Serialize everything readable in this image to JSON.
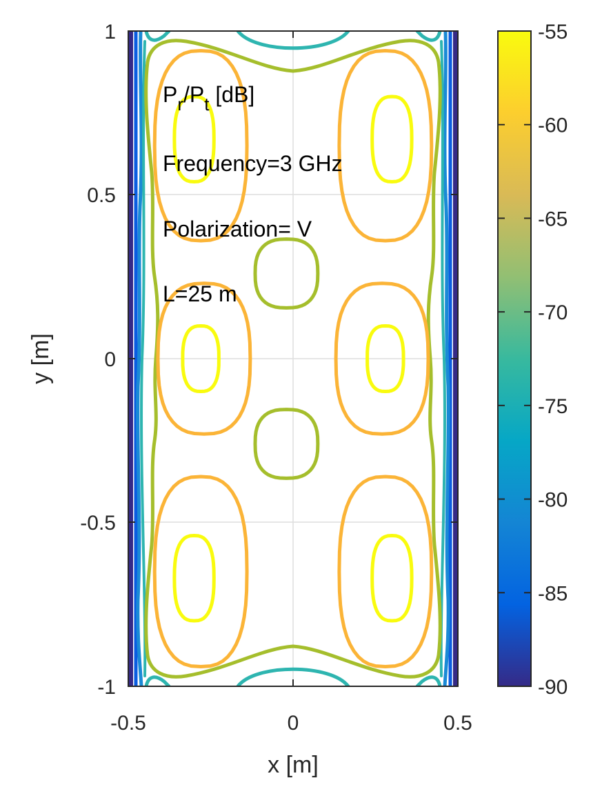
{
  "chart_data": {
    "type": "contour",
    "title": "",
    "xlabel": "x [m]",
    "ylabel": "y [m]",
    "xlim": [
      -0.5,
      0.5
    ],
    "ylim": [
      -1,
      1
    ],
    "xticks": [
      -0.5,
      0,
      0.5
    ],
    "xtick_labels": [
      "-0.5",
      "0",
      "0.5"
    ],
    "yticks": [
      -1,
      -0.5,
      0,
      0.5,
      1
    ],
    "ytick_labels": [
      "-1",
      "-0.5",
      "0",
      "0.5",
      "1"
    ],
    "grid": true,
    "colorbar": {
      "range": [
        -90,
        -55
      ],
      "ticks": [
        -90,
        -85,
        -80,
        -75,
        -70,
        -65,
        -60,
        -55
      ],
      "tick_labels": [
        "-90",
        "-85",
        "-80",
        "-75",
        "-70",
        "-65",
        "-60",
        "-55"
      ],
      "colormap": "parula"
    },
    "annotation": {
      "quantity_main1": "P",
      "quantity_sub1": "r",
      "quantity_slash": "/P",
      "quantity_sub2": "t",
      "quantity_unit": " [dB]",
      "frequency": "Frequency=3 GHz",
      "polarization": "Polarization= V",
      "length": "L=25 m"
    },
    "contour_levels": [
      {
        "level": -55,
        "color": "#F9FB0E",
        "regions": [
          {
            "cx": -0.3,
            "cy": 0.67,
            "rx": 0.06,
            "ry": 0.13
          },
          {
            "cx": 0.3,
            "cy": 0.67,
            "rx": 0.06,
            "ry": 0.13
          },
          {
            "cx": -0.28,
            "cy": 0.0,
            "rx": 0.055,
            "ry": 0.1
          },
          {
            "cx": 0.28,
            "cy": 0.0,
            "rx": 0.055,
            "ry": 0.1
          },
          {
            "cx": -0.3,
            "cy": -0.67,
            "rx": 0.06,
            "ry": 0.13
          },
          {
            "cx": 0.3,
            "cy": -0.67,
            "rx": 0.06,
            "ry": 0.13
          }
        ]
      },
      {
        "level": -60,
        "color": "#FBB437",
        "regions": [
          {
            "cx": -0.28,
            "cy": 0.65,
            "rx": 0.14,
            "ry": 0.29
          },
          {
            "cx": 0.28,
            "cy": 0.65,
            "rx": 0.14,
            "ry": 0.29
          },
          {
            "cx": -0.27,
            "cy": 0.0,
            "rx": 0.14,
            "ry": 0.23
          },
          {
            "cx": 0.27,
            "cy": 0.0,
            "rx": 0.14,
            "ry": 0.23
          },
          {
            "cx": -0.28,
            "cy": -0.65,
            "rx": 0.14,
            "ry": 0.29
          },
          {
            "cx": 0.28,
            "cy": -0.65,
            "rx": 0.14,
            "ry": 0.29
          }
        ]
      },
      {
        "level": -65,
        "color": "#A5BE2C",
        "regions": [
          {
            "cx": -0.02,
            "cy": 0.26,
            "rx": 0.095,
            "ry": 0.105
          },
          {
            "cx": -0.02,
            "cy": -0.26,
            "rx": 0.095,
            "ry": 0.105
          }
        ]
      }
    ]
  }
}
